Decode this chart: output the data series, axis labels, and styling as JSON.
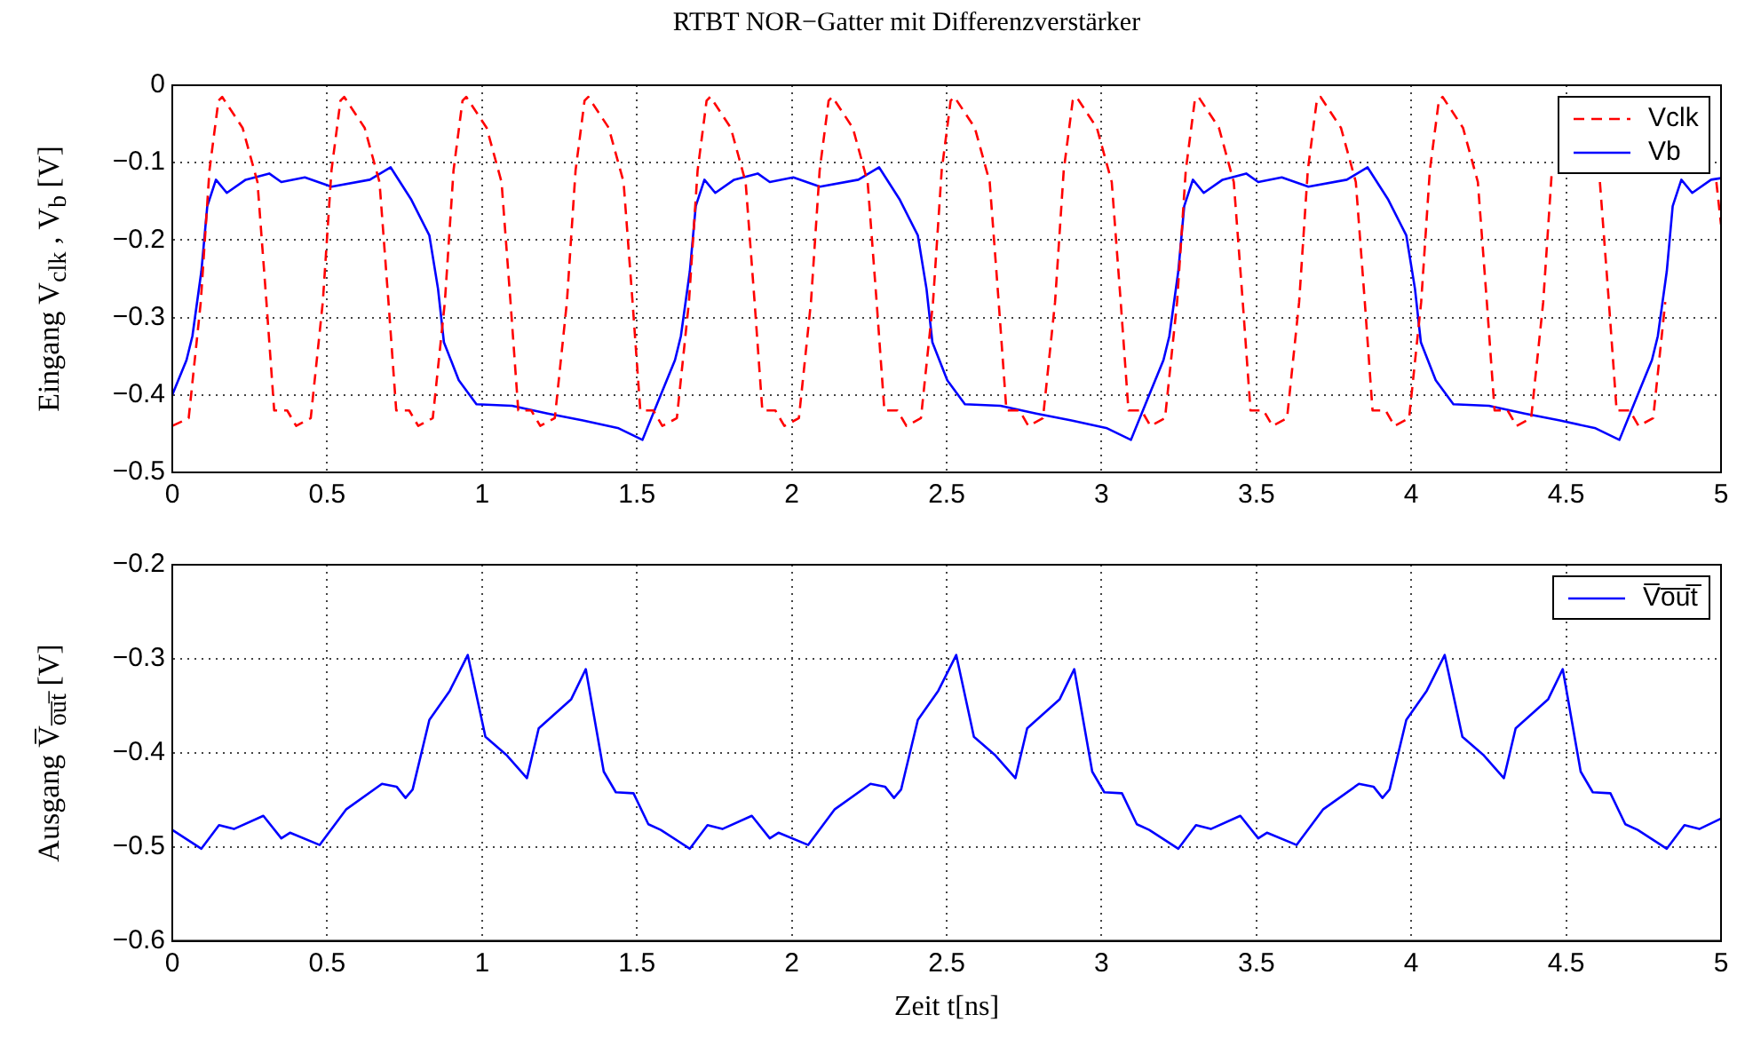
{
  "chart_data": [
    {
      "type": "line",
      "title": "RTBT NOR−Gatter mit Differenzverstärker",
      "ylabel": "Eingang V$_{clk}$ , V$_{b}$ [V]",
      "xlim": [
        0,
        5
      ],
      "xticks": [
        0,
        0.5,
        1,
        1.5,
        2,
        2.5,
        3,
        3.5,
        4,
        4.5,
        5
      ],
      "ylim": [
        -0.5,
        0
      ],
      "yticks": [
        -0.5,
        -0.4,
        -0.3,
        -0.2,
        -0.1,
        0
      ],
      "grid": true,
      "legend": "top right",
      "series": [
        {
          "name": "Vclk",
          "color": "#ff0000",
          "line_style": "dashed",
          "x": [
            0,
            0.053,
            0.092,
            0.12,
            0.149,
            0.161,
            0.227,
            0.275,
            0.304,
            0.329,
            0.371,
            0.4,
            0.447,
            0.486,
            0.514,
            0.543,
            0.555,
            0.621,
            0.669,
            0.698,
            0.723,
            0.765,
            0.794,
            0.841,
            0.88,
            0.908,
            0.937,
            0.949,
            1.015,
            1.063,
            1.092,
            1.117,
            1.159,
            1.188,
            1.235,
            1.274,
            1.302,
            1.331,
            1.343,
            1.409,
            1.457,
            1.486,
            1.511,
            1.553,
            1.582,
            1.629,
            1.668,
            1.696,
            1.725,
            1.737,
            1.803,
            1.851,
            1.88,
            1.905,
            1.947,
            1.976,
            2.023,
            2.062,
            2.09,
            2.119,
            2.131,
            2.197,
            2.245,
            2.274,
            2.299,
            2.341,
            2.37,
            2.417,
            2.456,
            2.484,
            2.513,
            2.525,
            2.591,
            2.639,
            2.668,
            2.693,
            2.735,
            2.764,
            2.811,
            2.85,
            2.878,
            2.907,
            2.919,
            2.985,
            3.033,
            3.062,
            3.087,
            3.129,
            3.158,
            3.205,
            3.244,
            3.272,
            3.301,
            3.313,
            3.379,
            3.427,
            3.456,
            3.481,
            3.523,
            3.552,
            3.599,
            3.638,
            3.666,
            3.695,
            3.707,
            3.773,
            3.821,
            3.85,
            3.875,
            3.917,
            3.946,
            3.993,
            4.032,
            4.06,
            4.089,
            4.101,
            4.167,
            4.215,
            4.244,
            4.269,
            4.311,
            4.34,
            4.387,
            4.426,
            4.454,
            4.483,
            4.495,
            4.561,
            4.609,
            4.638,
            4.663,
            4.705,
            4.734,
            4.781,
            4.82,
            4.848,
            4.877,
            4.889,
            4.985,
            5.0
          ],
          "values": [
            -0.44,
            -0.43,
            -0.28,
            -0.11,
            -0.02,
            -0.015,
            -0.055,
            -0.125,
            -0.28,
            -0.42,
            -0.42,
            -0.44,
            -0.43,
            -0.28,
            -0.11,
            -0.02,
            -0.015,
            -0.055,
            -0.125,
            -0.28,
            -0.42,
            -0.42,
            -0.44,
            -0.43,
            -0.28,
            -0.11,
            -0.02,
            -0.015,
            -0.055,
            -0.125,
            -0.28,
            -0.42,
            -0.42,
            -0.44,
            -0.43,
            -0.28,
            -0.11,
            -0.02,
            -0.015,
            -0.055,
            -0.125,
            -0.28,
            -0.42,
            -0.42,
            -0.44,
            -0.43,
            -0.28,
            -0.11,
            -0.02,
            -0.015,
            -0.055,
            -0.125,
            -0.28,
            -0.42,
            -0.42,
            -0.44,
            -0.43,
            -0.28,
            -0.11,
            -0.02,
            -0.015,
            -0.055,
            -0.125,
            -0.28,
            -0.42,
            -0.42,
            -0.44,
            -0.43,
            -0.28,
            -0.11,
            -0.02,
            -0.015,
            -0.055,
            -0.125,
            -0.28,
            -0.42,
            -0.42,
            -0.44,
            -0.43,
            -0.28,
            -0.11,
            -0.02,
            -0.015,
            -0.055,
            -0.125,
            -0.28,
            -0.42,
            -0.42,
            -0.44,
            -0.43,
            -0.28,
            -0.11,
            -0.02,
            -0.015,
            -0.055,
            -0.125,
            -0.28,
            -0.42,
            -0.42,
            -0.44,
            -0.43,
            -0.28,
            -0.11,
            -0.02,
            -0.015,
            -0.055,
            -0.125,
            -0.28,
            -0.42,
            -0.42,
            -0.44,
            -0.43,
            -0.28,
            -0.11,
            -0.02,
            -0.015,
            -0.055,
            -0.125,
            -0.28,
            -0.42,
            -0.42,
            -0.44,
            -0.43,
            -0.28,
            -0.11,
            null,
            null,
            null,
            -0.125,
            -0.28,
            -0.42,
            -0.42,
            -0.44,
            -0.43,
            -0.28,
            null,
            null,
            null,
            -0.125,
            -0.18
          ]
        },
        {
          "name": "Vb",
          "color": "#0000ff",
          "line_style": "solid",
          "x": [
            0,
            0.046,
            0.065,
            0.094,
            0.113,
            0.141,
            0.176,
            0.237,
            0.313,
            0.352,
            0.428,
            0.514,
            0.638,
            0.705,
            0.772,
            0.83,
            0.858,
            0.877,
            0.925,
            0.982,
            1.097,
            1.212,
            1.326,
            1.441,
            1.518,
            1.577,
            1.623,
            1.642,
            1.671,
            1.69,
            1.718,
            1.753,
            1.814,
            1.89,
            1.929,
            2.005,
            2.091,
            2.215,
            2.282,
            2.349,
            2.407,
            2.435,
            2.454,
            2.502,
            2.559,
            2.674,
            2.789,
            2.903,
            3.018,
            3.095,
            3.154,
            3.2,
            3.219,
            3.248,
            3.267,
            3.295,
            3.33,
            3.391,
            3.467,
            3.506,
            3.582,
            3.668,
            3.792,
            3.859,
            3.926,
            3.984,
            4.012,
            4.031,
            4.079,
            4.136,
            4.251,
            4.366,
            4.48,
            4.595,
            4.672,
            4.731,
            4.777,
            4.796,
            4.825,
            4.844,
            4.872,
            4.907,
            4.968,
            5.0
          ],
          "values": [
            -0.4,
            -0.355,
            -0.324,
            -0.24,
            -0.156,
            -0.122,
            -0.139,
            -0.122,
            -0.114,
            -0.125,
            -0.119,
            -0.131,
            -0.122,
            -0.106,
            -0.148,
            -0.194,
            -0.263,
            -0.332,
            -0.381,
            -0.412,
            -0.414,
            -0.424,
            -0.433,
            -0.443,
            -0.458,
            -0.4,
            -0.355,
            -0.324,
            -0.24,
            -0.156,
            -0.122,
            -0.139,
            -0.122,
            -0.114,
            -0.125,
            -0.119,
            -0.131,
            -0.122,
            -0.106,
            -0.148,
            -0.194,
            -0.263,
            -0.332,
            -0.381,
            -0.412,
            -0.414,
            -0.424,
            -0.433,
            -0.443,
            -0.458,
            -0.4,
            -0.355,
            -0.324,
            -0.24,
            -0.156,
            -0.122,
            -0.139,
            -0.122,
            -0.114,
            -0.125,
            -0.119,
            -0.131,
            -0.122,
            -0.106,
            -0.148,
            -0.194,
            -0.263,
            -0.332,
            -0.381,
            -0.412,
            -0.414,
            -0.424,
            -0.433,
            -0.443,
            -0.458,
            -0.4,
            -0.355,
            -0.324,
            -0.24,
            -0.156,
            -0.122,
            -0.139,
            -0.122,
            -0.12
          ]
        }
      ]
    },
    {
      "type": "line",
      "xlabel": "Zeit t[ns]",
      "ylabel": "Ausgang V̅$_{o̅u̅t̅}$ [V]",
      "xlim": [
        0,
        5
      ],
      "xticks": [
        0,
        0.5,
        1,
        1.5,
        2,
        2.5,
        3,
        3.5,
        4,
        4.5,
        5
      ],
      "ylim": [
        -0.6,
        -0.2
      ],
      "yticks": [
        -0.6,
        -0.5,
        -0.4,
        -0.3,
        -0.2
      ],
      "grid": true,
      "legend": "top right",
      "series": [
        {
          "name": "V̅o̅u̅t̅",
          "color": "#0000ff",
          "line_style": "solid",
          "x": [
            0,
            0.094,
            0.151,
            0.199,
            0.294,
            0.352,
            0.38,
            0.476,
            0.562,
            0.677,
            0.724,
            0.753,
            0.776,
            0.83,
            0.896,
            0.954,
            1.011,
            1.078,
            1.145,
            1.183,
            1.288,
            1.335,
            1.393,
            1.432,
            1.489,
            1.537,
            1.577,
            1.671,
            1.728,
            1.776,
            1.871,
            1.929,
            1.957,
            2.053,
            2.139,
            2.254,
            2.301,
            2.33,
            2.353,
            2.407,
            2.473,
            2.531,
            2.588,
            2.655,
            2.722,
            2.76,
            2.865,
            2.912,
            2.97,
            3.009,
            3.066,
            3.114,
            3.154,
            3.248,
            3.305,
            3.353,
            3.448,
            3.506,
            3.534,
            3.63,
            3.716,
            3.831,
            3.878,
            3.907,
            3.93,
            3.984,
            4.05,
            4.108,
            4.165,
            4.232,
            4.299,
            4.337,
            4.442,
            4.489,
            4.547,
            4.586,
            4.643,
            4.691,
            4.731,
            4.825,
            4.882,
            4.93,
            5.0
          ],
          "values": [
            -0.482,
            -0.502,
            -0.477,
            -0.481,
            -0.467,
            -0.491,
            -0.485,
            -0.498,
            -0.46,
            -0.433,
            -0.436,
            -0.448,
            -0.439,
            -0.365,
            -0.334,
            -0.296,
            -0.383,
            -0.402,
            -0.427,
            -0.374,
            -0.343,
            -0.311,
            -0.42,
            -0.442,
            -0.443,
            -0.476,
            -0.482,
            -0.502,
            -0.477,
            -0.481,
            -0.467,
            -0.491,
            -0.485,
            -0.498,
            -0.46,
            -0.433,
            -0.436,
            -0.448,
            -0.439,
            -0.365,
            -0.334,
            -0.296,
            -0.383,
            -0.402,
            -0.427,
            -0.374,
            -0.343,
            -0.311,
            -0.42,
            -0.442,
            -0.443,
            -0.476,
            -0.482,
            -0.502,
            -0.477,
            -0.481,
            -0.467,
            -0.491,
            -0.485,
            -0.498,
            -0.46,
            -0.433,
            -0.436,
            -0.448,
            -0.439,
            -0.365,
            -0.334,
            -0.296,
            -0.383,
            -0.402,
            -0.427,
            -0.374,
            -0.343,
            -0.311,
            -0.42,
            -0.442,
            -0.443,
            -0.476,
            -0.482,
            -0.502,
            -0.477,
            -0.481,
            -0.47
          ]
        }
      ]
    }
  ]
}
